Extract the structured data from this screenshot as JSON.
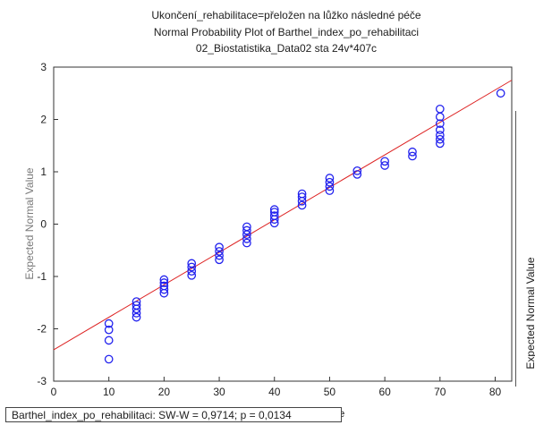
{
  "chart_data": {
    "type": "scatter",
    "title": "Ukončení_rehabilitace=přeložen na lůžko následné péče",
    "subtitle": "Normal Probability Plot of Barthel_index_po_rehabilitaci",
    "dataset": "02_Biostatistika_Data02 sta 24v*407c",
    "ylabel": "Expected Normal Value",
    "xlim": [
      0,
      83
    ],
    "ylim": [
      -3,
      3
    ],
    "xticks": [
      0,
      10,
      20,
      30,
      40,
      50,
      60,
      70,
      80
    ],
    "yticks": [
      -3,
      -2,
      -1,
      0,
      1,
      2,
      3
    ],
    "grid": false,
    "series": [
      {
        "marker": "open-circle",
        "color": "#2222ee",
        "points": [
          [
            10,
            -2.58
          ],
          [
            10,
            -2.22
          ],
          [
            10,
            -2.02
          ],
          [
            10,
            -1.9
          ],
          [
            15,
            -1.78
          ],
          [
            15,
            -1.7
          ],
          [
            15,
            -1.62
          ],
          [
            15,
            -1.55
          ],
          [
            15,
            -1.48
          ],
          [
            20,
            -1.32
          ],
          [
            20,
            -1.25
          ],
          [
            20,
            -1.18
          ],
          [
            20,
            -1.12
          ],
          [
            20,
            -1.06
          ],
          [
            25,
            -0.98
          ],
          [
            25,
            -0.9
          ],
          [
            25,
            -0.82
          ],
          [
            25,
            -0.75
          ],
          [
            30,
            -0.68
          ],
          [
            30,
            -0.6
          ],
          [
            30,
            -0.52
          ],
          [
            30,
            -0.44
          ],
          [
            35,
            -0.36
          ],
          [
            35,
            -0.28
          ],
          [
            35,
            -0.2
          ],
          [
            35,
            -0.12
          ],
          [
            35,
            -0.05
          ],
          [
            40,
            0.02
          ],
          [
            40,
            0.09
          ],
          [
            40,
            0.16
          ],
          [
            40,
            0.23
          ],
          [
            40,
            0.28
          ],
          [
            45,
            0.36
          ],
          [
            45,
            0.44
          ],
          [
            45,
            0.52
          ],
          [
            45,
            0.58
          ],
          [
            50,
            0.64
          ],
          [
            50,
            0.72
          ],
          [
            50,
            0.8
          ],
          [
            50,
            0.88
          ],
          [
            55,
            0.95
          ],
          [
            55,
            1.02
          ],
          [
            60,
            1.12
          ],
          [
            60,
            1.2
          ],
          [
            65,
            1.3
          ],
          [
            65,
            1.38
          ],
          [
            70,
            1.54
          ],
          [
            70,
            1.62
          ],
          [
            70,
            1.7
          ],
          [
            70,
            1.8
          ],
          [
            70,
            1.92
          ],
          [
            70,
            2.05
          ],
          [
            70,
            2.2
          ],
          [
            81,
            2.5
          ]
        ]
      }
    ],
    "fit_line": {
      "color": "#dd2222",
      "x": [
        0,
        83
      ],
      "y": [
        -2.4,
        2.75
      ]
    }
  },
  "stats": {
    "text": "Barthel_index_po_rehabilitaci:  SW-W = 0,9714; p = 0,0134"
  },
  "x_label_fragment": "ue"
}
